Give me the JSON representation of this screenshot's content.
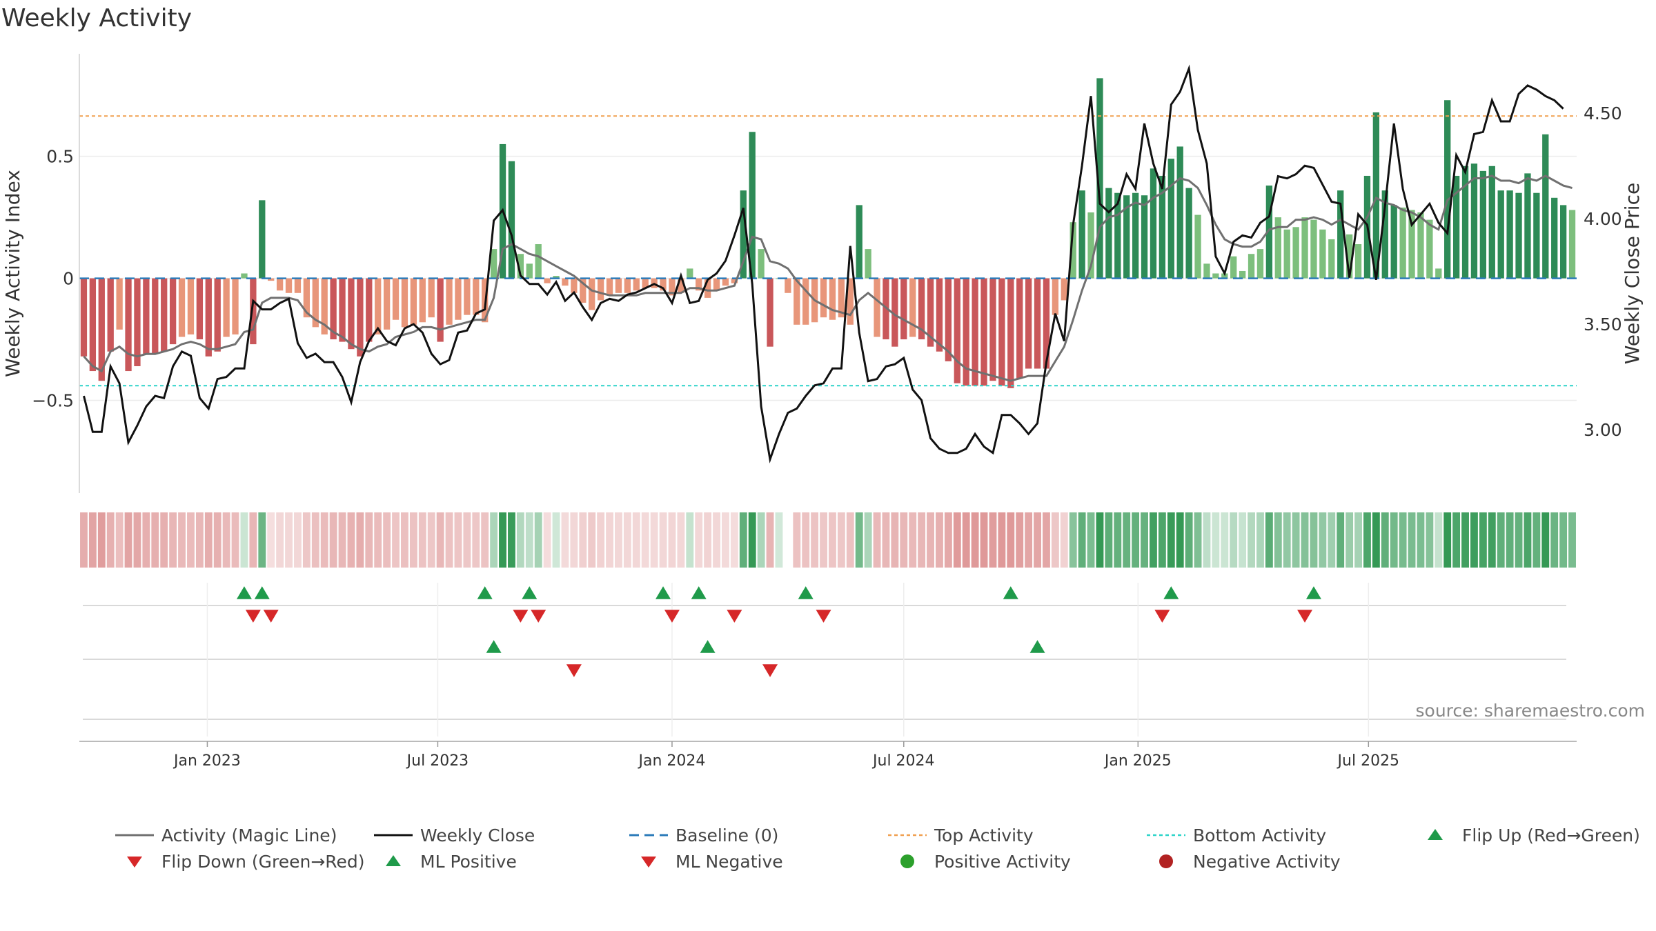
{
  "title": "Weekly Activity",
  "source": "source: sharemaestro.com",
  "colors": {
    "strong_red": "#c9575a",
    "light_red": "#e8967a",
    "strong_green": "#2e8b57",
    "light_green": "#7dbf7d",
    "magic_line": "#707070",
    "close_line": "#111111",
    "baseline": "#2b7bb9",
    "top": "#f0a050",
    "bottom": "#2ed4c9",
    "flip_up": "#1f9a4a",
    "flip_down": "#d62728",
    "pos_dot": "#2ca02c",
    "neg_dot": "#b22222"
  },
  "chart_data": {
    "type": "bar",
    "title": "Weekly Activity",
    "ylabel": "Weekly Activity Index",
    "y2label": "Weekly Close Price",
    "ylim": [
      -0.88,
      0.92
    ],
    "y2lim": [
      2.7,
      4.78
    ],
    "yticks": [
      {
        "v": 0.5,
        "label": "0.5"
      },
      {
        "v": 0,
        "label": "0"
      },
      {
        "v": -0.5,
        "label": "−0.5"
      }
    ],
    "y2ticks": [
      {
        "v": 4.5,
        "label": "4.50"
      },
      {
        "v": 4.0,
        "label": "4.00"
      },
      {
        "v": 3.5,
        "label": "3.50"
      },
      {
        "v": 3.0,
        "label": "3.00"
      }
    ],
    "top_activity": 0.665,
    "bottom_activity": -0.44,
    "x_start": "2022-09-26",
    "x_ticks": [
      "Jan 2023",
      "Jul 2023",
      "Jan 2024",
      "Jul 2024",
      "Jan 2025",
      "Jul 2025"
    ],
    "activity": [
      -0.32,
      -0.38,
      -0.42,
      -0.3,
      -0.21,
      -0.38,
      -0.36,
      -0.31,
      -0.31,
      -0.3,
      -0.27,
      -0.24,
      -0.23,
      -0.25,
      -0.32,
      -0.3,
      -0.24,
      -0.23,
      0.02,
      -0.27,
      0.32,
      -0.01,
      -0.05,
      -0.06,
      -0.06,
      -0.16,
      -0.2,
      -0.23,
      -0.25,
      -0.26,
      -0.29,
      -0.32,
      -0.26,
      -0.23,
      -0.21,
      -0.17,
      -0.2,
      -0.19,
      -0.18,
      -0.16,
      -0.26,
      -0.19,
      -0.17,
      -0.15,
      -0.15,
      -0.18,
      0.12,
      0.55,
      0.48,
      0.1,
      0.06,
      0.14,
      -0.02,
      0.01,
      -0.03,
      -0.06,
      -0.1,
      -0.13,
      -0.09,
      -0.07,
      -0.06,
      -0.06,
      -0.05,
      -0.04,
      -0.04,
      -0.05,
      -0.07,
      -0.06,
      0.04,
      -0.05,
      -0.08,
      -0.05,
      -0.03,
      -0.02,
      0.36,
      0.6,
      0.12,
      -0.28,
      0.0,
      -0.06,
      -0.19,
      -0.19,
      -0.18,
      -0.16,
      -0.17,
      -0.16,
      -0.19,
      0.3,
      0.12,
      -0.24,
      -0.25,
      -0.28,
      -0.25,
      -0.24,
      -0.25,
      -0.28,
      -0.3,
      -0.34,
      -0.43,
      -0.44,
      -0.44,
      -0.44,
      -0.42,
      -0.44,
      -0.45,
      -0.41,
      -0.37,
      -0.37,
      -0.37,
      -0.15,
      -0.09,
      0.23,
      0.36,
      0.27,
      0.82,
      0.37,
      0.35,
      0.34,
      0.35,
      0.34,
      0.45,
      0.42,
      0.49,
      0.54,
      0.37,
      0.26,
      0.06,
      0.02,
      0.02,
      0.09,
      0.03,
      0.1,
      0.12,
      0.38,
      0.25,
      0.2,
      0.21,
      0.25,
      0.24,
      0.2,
      0.16,
      0.36,
      0.18,
      0.14,
      0.42,
      0.68,
      0.36,
      0.3,
      0.29,
      0.28,
      0.27,
      0.24,
      0.04,
      0.73,
      0.42,
      0.46,
      0.47,
      0.44,
      0.46,
      0.36,
      0.36,
      0.35,
      0.43,
      0.35,
      0.59,
      0.33,
      0.3,
      0.28
    ],
    "magic_line": [
      -0.32,
      -0.36,
      -0.38,
      -0.3,
      -0.28,
      -0.31,
      -0.32,
      -0.31,
      -0.31,
      -0.3,
      -0.29,
      -0.27,
      -0.26,
      -0.27,
      -0.29,
      -0.29,
      -0.28,
      -0.27,
      -0.22,
      -0.21,
      -0.1,
      -0.08,
      -0.08,
      -0.08,
      -0.09,
      -0.14,
      -0.17,
      -0.19,
      -0.22,
      -0.24,
      -0.27,
      -0.29,
      -0.3,
      -0.28,
      -0.27,
      -0.24,
      -0.23,
      -0.22,
      -0.2,
      -0.2,
      -0.21,
      -0.2,
      -0.19,
      -0.18,
      -0.17,
      -0.17,
      -0.08,
      0.12,
      0.14,
      0.12,
      0.1,
      0.09,
      0.07,
      0.05,
      0.03,
      0.01,
      -0.02,
      -0.05,
      -0.06,
      -0.07,
      -0.07,
      -0.07,
      -0.07,
      -0.06,
      -0.06,
      -0.06,
      -0.06,
      -0.06,
      -0.04,
      -0.04,
      -0.05,
      -0.05,
      -0.04,
      -0.03,
      0.07,
      0.17,
      0.16,
      0.07,
      0.06,
      0.04,
      -0.01,
      -0.05,
      -0.09,
      -0.11,
      -0.13,
      -0.14,
      -0.15,
      -0.09,
      -0.06,
      -0.09,
      -0.12,
      -0.15,
      -0.17,
      -0.19,
      -0.21,
      -0.24,
      -0.27,
      -0.3,
      -0.34,
      -0.37,
      -0.38,
      -0.39,
      -0.4,
      -0.41,
      -0.42,
      -0.41,
      -0.4,
      -0.4,
      -0.4,
      -0.34,
      -0.28,
      -0.17,
      -0.05,
      0.05,
      0.21,
      0.25,
      0.26,
      0.29,
      0.31,
      0.3,
      0.33,
      0.35,
      0.38,
      0.41,
      0.4,
      0.37,
      0.3,
      0.22,
      0.16,
      0.14,
      0.13,
      0.13,
      0.15,
      0.2,
      0.21,
      0.21,
      0.24,
      0.24,
      0.25,
      0.24,
      0.22,
      0.24,
      0.22,
      0.2,
      0.25,
      0.33,
      0.31,
      0.3,
      0.28,
      0.27,
      0.25,
      0.22,
      0.2,
      0.32,
      0.35,
      0.38,
      0.41,
      0.41,
      0.42,
      0.4,
      0.4,
      0.39,
      0.41,
      0.4,
      0.42,
      0.4,
      0.38,
      0.37
    ],
    "close": [
      3.16,
      2.99,
      2.99,
      3.3,
      3.22,
      2.94,
      3.02,
      3.11,
      3.16,
      3.15,
      3.3,
      3.37,
      3.35,
      3.15,
      3.1,
      3.24,
      3.25,
      3.29,
      3.29,
      3.61,
      3.57,
      3.57,
      3.6,
      3.62,
      3.41,
      3.34,
      3.36,
      3.32,
      3.32,
      3.25,
      3.13,
      3.32,
      3.42,
      3.48,
      3.42,
      3.4,
      3.48,
      3.5,
      3.46,
      3.36,
      3.31,
      3.33,
      3.46,
      3.47,
      3.55,
      3.57,
      3.99,
      4.04,
      3.92,
      3.73,
      3.69,
      3.69,
      3.64,
      3.7,
      3.61,
      3.65,
      3.58,
      3.52,
      3.6,
      3.62,
      3.61,
      3.64,
      3.65,
      3.67,
      3.69,
      3.67,
      3.6,
      3.73,
      3.6,
      3.61,
      3.71,
      3.74,
      3.8,
      3.92,
      4.05,
      3.69,
      3.11,
      2.86,
      2.98,
      3.08,
      3.1,
      3.16,
      3.21,
      3.22,
      3.29,
      3.29,
      3.87,
      3.46,
      3.23,
      3.24,
      3.3,
      3.31,
      3.34,
      3.19,
      3.14,
      2.96,
      2.91,
      2.89,
      2.89,
      2.91,
      2.98,
      2.92,
      2.89,
      3.07,
      3.07,
      3.03,
      2.98,
      3.03,
      3.32,
      3.55,
      3.42,
      3.97,
      4.25,
      4.58,
      4.07,
      4.03,
      4.07,
      4.21,
      4.14,
      4.45,
      4.26,
      4.14,
      4.54,
      4.6,
      4.71,
      4.42,
      4.26,
      3.82,
      3.74,
      3.89,
      3.92,
      3.91,
      3.98,
      4.01,
      4.2,
      4.19,
      4.21,
      4.25,
      4.24,
      4.16,
      4.08,
      4.07,
      3.72,
      4.02,
      3.97,
      3.71,
      4.06,
      4.45,
      4.14,
      3.97,
      4.02,
      4.07,
      3.98,
      3.93,
      4.3,
      4.22,
      4.4,
      4.41,
      4.56,
      4.46,
      4.46,
      4.59,
      4.63,
      4.61,
      4.58,
      4.56,
      4.52
    ],
    "strip": {
      "gap_index": 79
    },
    "markers": {
      "flip_up": [
        18,
        20,
        45,
        50,
        65,
        69,
        81,
        104,
        122,
        138
      ],
      "flip_down": [
        19,
        21,
        49,
        51,
        66,
        73,
        83,
        121,
        137
      ],
      "ml_positive": [
        46,
        70,
        107
      ],
      "ml_negative": [
        55,
        77
      ],
      "positive_activity": [],
      "negative_activity": []
    }
  },
  "legend": [
    {
      "label": "Activity (Magic Line)",
      "symbol": "solid-line",
      "color": "#707070"
    },
    {
      "label": "Weekly Close",
      "symbol": "solid-line",
      "color": "#111111"
    },
    {
      "label": "Baseline (0)",
      "symbol": "dashed-line",
      "color": "#2b7bb9"
    },
    {
      "label": "Top Activity",
      "symbol": "dotted-line",
      "color": "#f0a050"
    },
    {
      "label": "Bottom Activity",
      "symbol": "dotted-line",
      "color": "#2ed4c9"
    },
    {
      "label": "Flip Up (Red→Green)",
      "symbol": "triangle-up",
      "color": "#1f9a4a"
    },
    {
      "label": "Flip Down (Green→Red)",
      "symbol": "triangle-down",
      "color": "#d62728"
    },
    {
      "label": "ML Positive",
      "symbol": "triangle-up",
      "color": "#1f9a4a"
    },
    {
      "label": "ML Negative",
      "symbol": "triangle-down",
      "color": "#d62728"
    },
    {
      "label": "Positive Activity",
      "symbol": "circle",
      "color": "#2ca02c"
    },
    {
      "label": "Negative Activity",
      "symbol": "circle",
      "color": "#b22222"
    }
  ]
}
